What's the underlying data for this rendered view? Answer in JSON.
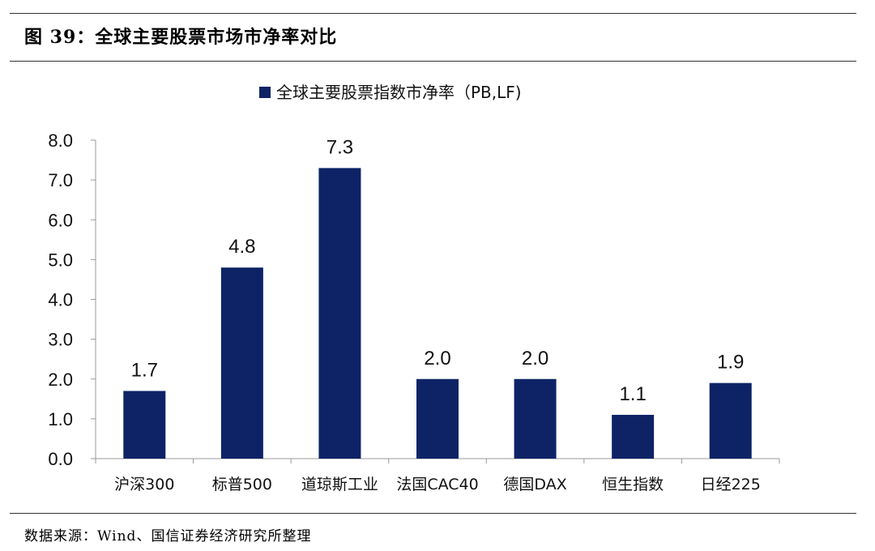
{
  "figure": {
    "title": "图 39：全球主要股票市场市净率对比",
    "source": "数据来源：Wind、国信证券经济研究所整理"
  },
  "colors": {
    "bar": "#0d2366",
    "axis": "#999999"
  },
  "chart_data": {
    "type": "bar",
    "categories": [
      "沪深300",
      "标普500",
      "道琼斯工业",
      "法国CAC40",
      "德国DAX",
      "恒生指数",
      "日经225"
    ],
    "series": [
      {
        "name": "全球主要股票指数市净率（PB,LF)",
        "values": [
          1.7,
          4.8,
          7.3,
          2.0,
          2.0,
          1.1,
          1.9
        ]
      }
    ],
    "data_labels": [
      "1.7",
      "4.8",
      "7.3",
      "2.0",
      "2.0",
      "1.1",
      "1.9"
    ],
    "yticks": [
      "0.0",
      "1.0",
      "2.0",
      "3.0",
      "4.0",
      "5.0",
      "6.0",
      "7.0",
      "8.0"
    ],
    "ylim": [
      0,
      8
    ],
    "grid": false,
    "legend_position": "top-center"
  }
}
